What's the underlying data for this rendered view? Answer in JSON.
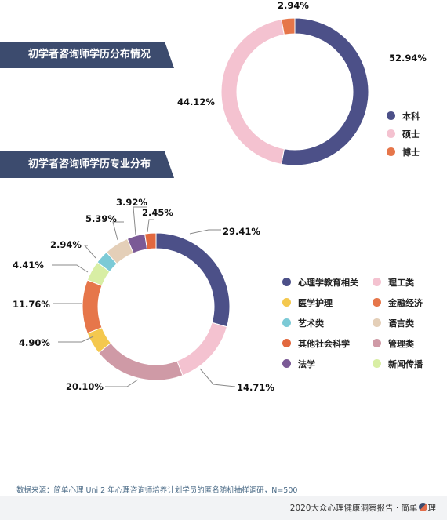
{
  "banners": {
    "edu_title": "初学者咨询师学历分布情况",
    "major_title": "初学者咨询师学历专业分布"
  },
  "chart_data": [
    {
      "type": "pie",
      "title": "初学者咨询师学历分布情况",
      "categories": [
        "本科",
        "硕士",
        "博士"
      ],
      "values": [
        52.94,
        44.12,
        2.94
      ],
      "value_labels": [
        "52.94%",
        "44.12%",
        "2.94%"
      ],
      "colors": [
        "#4c5088",
        "#f4c2d0",
        "#e6764a"
      ],
      "legend": "right"
    },
    {
      "type": "pie",
      "title": "初学者咨询师学历专业分布",
      "categories": [
        "心理学教育相关",
        "理工类",
        "管理类",
        "医学护理",
        "金融经济",
        "新闻传播",
        "艺术类",
        "语言类",
        "法学",
        "其他社会科学"
      ],
      "values": [
        29.41,
        14.71,
        20.1,
        4.9,
        11.76,
        4.41,
        2.94,
        5.39,
        3.92,
        2.45
      ],
      "value_labels": [
        "29.41%",
        "14.71%",
        "20.10%",
        "4.90%",
        "11.76%",
        "4.41%",
        "2.94%",
        "5.39%",
        "3.92%",
        "2.45%"
      ],
      "colors": [
        "#4c5088",
        "#f4c2d0",
        "#cf9aa6",
        "#f4c84e",
        "#e6764a",
        "#d8eea4",
        "#7ccad6",
        "#e4cfb8",
        "#7b5a96",
        "#e2683e"
      ],
      "legend_order": [
        "心理学教育相关",
        "理工类",
        "医学护理",
        "金融经济",
        "艺术类",
        "语言类",
        "其他社会科学",
        "管理类",
        "法学",
        "新闻传播"
      ],
      "legend": "right"
    }
  ],
  "source_text": "数据来源：简单心理 Uni 2 年心理咨询师培养计划学员的匿名随机抽样调研，N=500",
  "footer": {
    "report": "2020大众心理健康洞察报告 · 简单",
    "brand_end": "理"
  }
}
